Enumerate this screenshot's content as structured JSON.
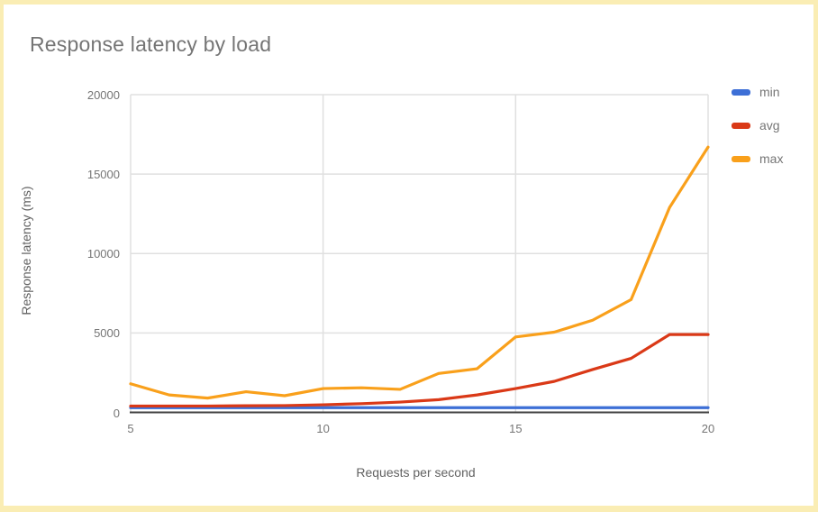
{
  "card": {
    "background": "#FFFFFF",
    "selection_border_color": "#FAEDB4"
  },
  "style": {
    "title_color": "#757575",
    "tick_label_color": "#757575",
    "axis_title_color": "#616161",
    "grid_color": "#E0E0E0",
    "baseline_color": "#424242"
  },
  "chart_data": {
    "type": "line",
    "title": "Response latency by load",
    "xlabel": "Requests per second",
    "ylabel": "Response latency (ms)",
    "x": [
      5,
      6,
      7,
      8,
      9,
      10,
      11,
      12,
      13,
      14,
      15,
      16,
      17,
      18,
      19,
      20
    ],
    "series": [
      {
        "name": "min",
        "color": "#3D6FD6",
        "values": [
          300,
          300,
          300,
          300,
          300,
          300,
          300,
          300,
          300,
          300,
          300,
          300,
          300,
          300,
          300,
          300
        ]
      },
      {
        "name": "avg",
        "color": "#DA3917",
        "values": [
          400,
          400,
          400,
          420,
          430,
          480,
          550,
          650,
          800,
          1100,
          1500,
          1950,
          2700,
          3400,
          4900,
          4900
        ]
      },
      {
        "name": "max",
        "color": "#F9A01B",
        "values": [
          1800,
          1100,
          900,
          1300,
          1050,
          1500,
          1550,
          1450,
          2450,
          2750,
          4750,
          5050,
          5800,
          7100,
          12900,
          16700
        ]
      }
    ],
    "xlim": [
      5,
      20
    ],
    "ylim": [
      0,
      20000
    ],
    "xticks": [
      5,
      10,
      15,
      20
    ],
    "yticks": [
      0,
      5000,
      10000,
      15000,
      20000
    ],
    "grid": "on",
    "legend_position": "right"
  }
}
